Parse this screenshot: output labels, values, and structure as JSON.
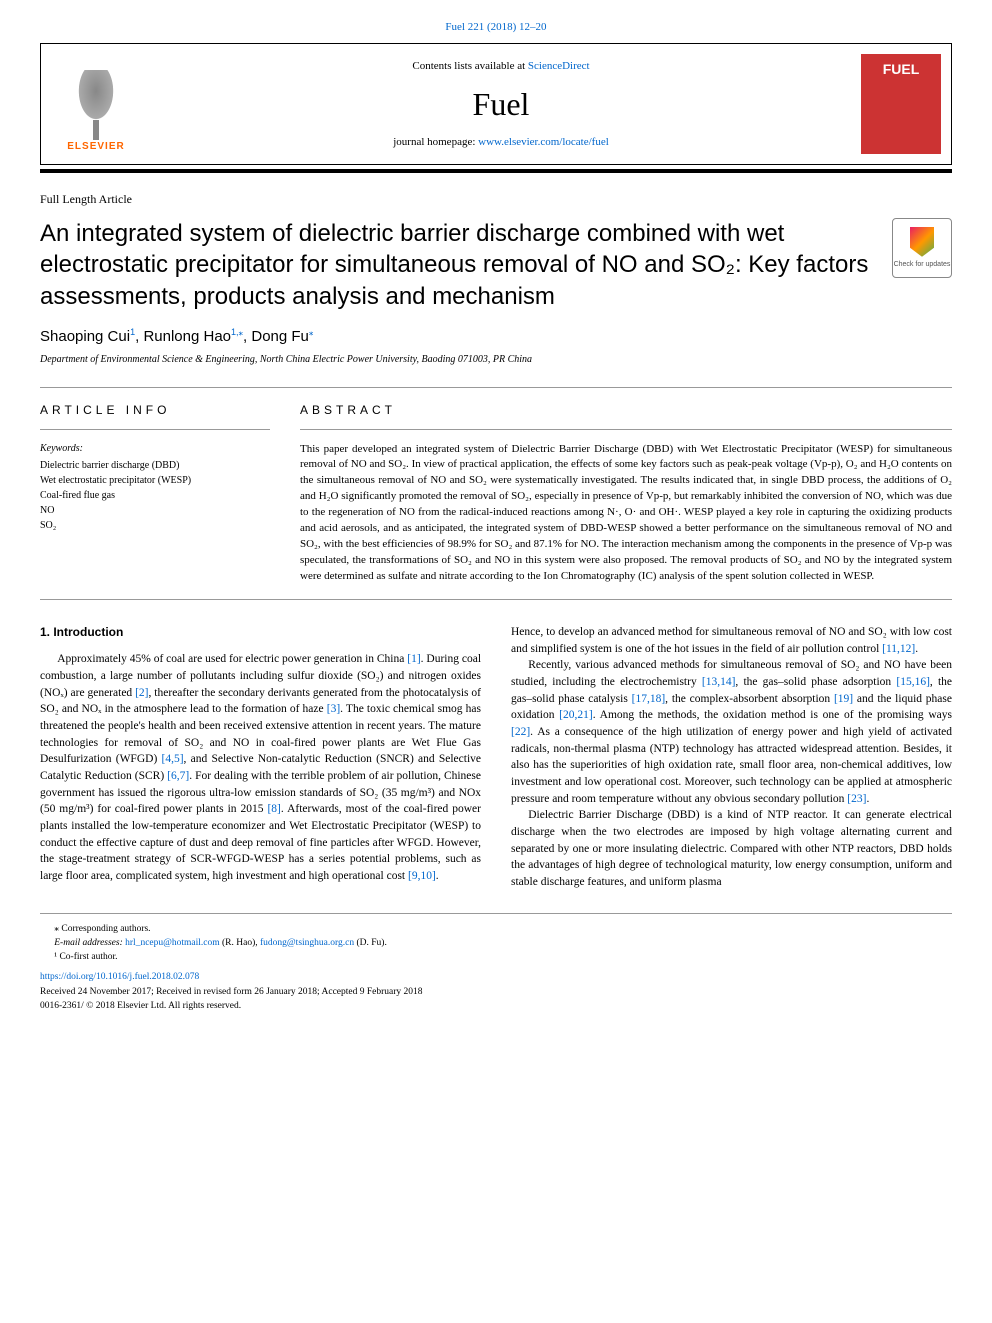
{
  "top": {
    "citation_prefix": "Fuel 221 (2018) 12–20",
    "contents_prefix": "Contents lists available at ",
    "contents_link": "ScienceDirect",
    "journal_name": "Fuel",
    "homepage_prefix": "journal homepage: ",
    "homepage_link": "www.elsevier.com/locate/fuel",
    "elsevier_label": "ELSEVIER",
    "cover_title": "FUEL",
    "updates_label": "Check for updates"
  },
  "article": {
    "type": "Full Length Article",
    "title": "An integrated system of dielectric barrier discharge combined with wet electrostatic precipitator for simultaneous removal of NO and SO₂: Key factors assessments, products analysis and mechanism",
    "authors_html": "Shaoping Cui¹, Runlong Hao¹,*, Dong Fu*",
    "authors": [
      {
        "name": "Shaoping Cui",
        "note": "1"
      },
      {
        "name": "Runlong Hao",
        "note": "1,⁎"
      },
      {
        "name": "Dong Fu",
        "note": "⁎"
      }
    ],
    "affiliation": "Department of Environmental Science & Engineering, North China Electric Power University, Baoding 071003, PR China"
  },
  "info": {
    "heading": "ARTICLE INFO",
    "keywords_label": "Keywords:",
    "keywords": [
      "Dielectric barrier discharge (DBD)",
      "Wet electrostatic precipitator (WESP)",
      "Coal-fired flue gas",
      "NO",
      "SO₂"
    ]
  },
  "abstract": {
    "heading": "ABSTRACT",
    "text": "This paper developed an integrated system of Dielectric Barrier Discharge (DBD) with Wet Electrostatic Precipitator (WESP) for simultaneous removal of NO and SO₂. In view of practical application, the effects of some key factors such as peak-peak voltage (Vp-p), O₂ and H₂O contents on the simultaneous removal of NO and SO₂ were systematically investigated. The results indicated that, in single DBD process, the additions of O₂ and H₂O significantly promoted the removal of SO₂, especially in presence of Vp-p, but remarkably inhibited the conversion of NO, which was due to the regeneration of NO from the radical-induced reactions among N·, O· and OH·. WESP played a key role in capturing the oxidizing products and acid aerosols, and as anticipated, the integrated system of DBD-WESP showed a better performance on the simultaneous removal of NO and SO₂, with the best efficiencies of 98.9% for SO₂ and 87.1% for NO. The interaction mechanism among the components in the presence of Vp-p was speculated, the transformations of SO₂ and NO in this system were also proposed. The removal products of SO₂ and NO by the integrated system were determined as sulfate and nitrate according to the Ion Chromatography (IC) analysis of the spent solution collected in WESP."
  },
  "body": {
    "section_heading": "1. Introduction",
    "left_paragraphs": [
      "Approximately 45% of coal are used for electric power generation in China [1]. During coal combustion, a large number of pollutants including sulfur dioxide (SO₂) and nitrogen oxides (NOₓ) are generated [2], thereafter the secondary derivants generated from the photocatalysis of SO₂ and NOₓ in the atmosphere lead to the formation of haze [3]. The toxic chemical smog has threatened the people's health and been received extensive attention in recent years. The mature technologies for removal of SO₂ and NO in coal-fired power plants are Wet Flue Gas Desulfurization (WFGD) [4,5], and Selective Non-catalytic Reduction (SNCR) and Selective Catalytic Reduction (SCR) [6,7]. For dealing with the terrible problem of air pollution, Chinese government has issued the rigorous ultra-low emission standards of SO₂ (35 mg/m³) and NOx (50 mg/m³) for coal-fired power plants in 2015 [8]. Afterwards, most of the coal-fired power plants installed the low-temperature economizer and Wet Electrostatic Precipitator (WESP) to conduct the effective capture of dust and deep removal of fine particles after WFGD. However, the stage-treatment strategy of SCR-WFGD-WESP has a series potential problems, such as large floor area, complicated system, high investment and high operational cost [9,10]."
    ],
    "right_paragraphs": [
      "Hence, to develop an advanced method for simultaneous removal of NO and SO₂ with low cost and simplified system is one of the hot issues in the field of air pollution control [11,12].",
      "Recently, various advanced methods for simultaneous removal of SO₂ and NO have been studied, including the electrochemistry [13,14], the gas–solid phase adsorption [15,16], the gas–solid phase catalysis [17,18], the complex-absorbent absorption [19] and the liquid phase oxidation [20,21]. Among the methods, the oxidation method is one of the promising ways [22]. As a consequence of the high utilization of energy power and high yield of activated radicals, non-thermal plasma (NTP) technology has attracted widespread attention. Besides, it also has the superiorities of high oxidation rate, small floor area, non-chemical additives, low investment and low operational cost. Moreover, such technology can be applied at atmospheric pressure and room temperature without any obvious secondary pollution [23].",
      "Dielectric Barrier Discharge (DBD) is a kind of NTP reactor. It can generate electrical discharge when the two electrodes are imposed by high voltage alternating current and separated by one or more insulating dielectric. Compared with other NTP reactors, DBD holds the advantages of high degree of technological maturity, low energy consumption, uniform and stable discharge features, and uniform plasma"
    ],
    "refs": [
      "[1]",
      "[2]",
      "[3]",
      "[4,5]",
      "[6,7]",
      "[8]",
      "[9,10]",
      "[11,12]",
      "[13,14]",
      "[15,16]",
      "[17,18]",
      "[19]",
      "[20,21]",
      "[22]",
      "[23]"
    ]
  },
  "footer": {
    "corr_label": "⁎ Corresponding authors.",
    "email_label": "E-mail addresses: ",
    "emails": [
      {
        "addr": "hrl_ncepu@hotmail.com",
        "who": " (R. Hao), "
      },
      {
        "addr": "fudong@tsinghua.org.cn",
        "who": " (D. Fu)."
      }
    ],
    "cofirst": "¹ Co-first author.",
    "doi": "https://doi.org/10.1016/j.fuel.2018.02.078",
    "received": "Received 24 November 2017; Received in revised form 26 January 2018; Accepted 9 February 2018",
    "issn_copyright": "0016-2361/ © 2018 Elsevier Ltd. All rights reserved."
  },
  "colors": {
    "link": "#0066cc",
    "elsevier_orange": "#ff6600",
    "cover_red": "#cc3333",
    "rule": "#999999",
    "text": "#000000",
    "bg": "#ffffff"
  }
}
